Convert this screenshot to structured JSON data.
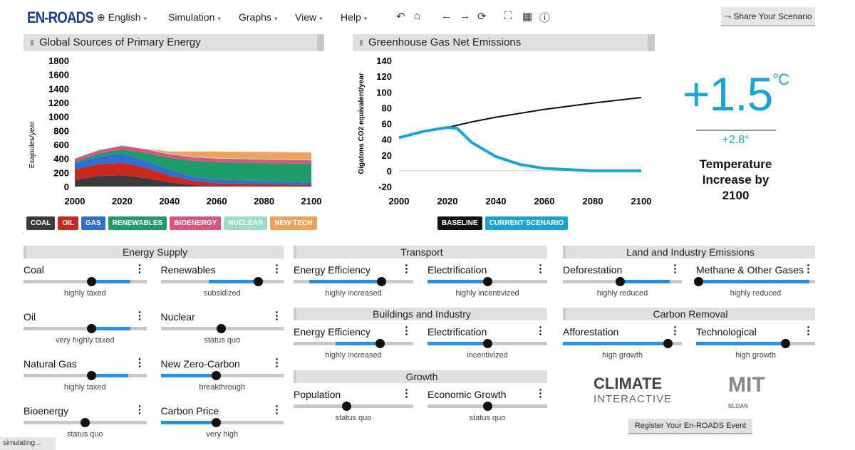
{
  "app": {
    "logo": "EN-ROADS",
    "status": "simulating..."
  },
  "menu": [
    {
      "label": "English",
      "icon": "globe-icon"
    },
    {
      "label": "Simulation"
    },
    {
      "label": "Graphs"
    },
    {
      "label": "View"
    },
    {
      "label": "Help"
    }
  ],
  "toolbar": {
    "undo": "↶",
    "home": "⌂",
    "back": "←",
    "forward": "→",
    "reset": "⟳",
    "fullscreen": "⛶",
    "table": "▦",
    "info": "ⓘ",
    "share_label": "Share Your Scenario",
    "share_icon": "⤳"
  },
  "graphs": {
    "left_title": "Global Sources of Primary Energy",
    "right_title": "Greenhouse Gas Net Emissions"
  },
  "chart_data": [
    {
      "type": "area",
      "title": "Global Sources of Primary Energy",
      "ylabel": "Exajoules/year",
      "xlabel": "",
      "xlim": [
        2000,
        2100
      ],
      "ylim": [
        0,
        1800
      ],
      "xticks": [
        2000,
        2020,
        2040,
        2060,
        2080,
        2100
      ],
      "yticks": [
        0,
        200,
        400,
        600,
        800,
        1000,
        1200,
        1400,
        1600,
        1800
      ],
      "x": [
        2000,
        2010,
        2020,
        2030,
        2040,
        2050,
        2060,
        2080,
        2100
      ],
      "stacked": true,
      "series": [
        {
          "name": "COAL",
          "color": "#3b3b3b",
          "values": [
            95,
            150,
            160,
            120,
            60,
            20,
            10,
            5,
            5
          ]
        },
        {
          "name": "OIL",
          "color": "#c8281e",
          "values": [
            150,
            170,
            180,
            150,
            100,
            60,
            40,
            30,
            20
          ]
        },
        {
          "name": "GAS",
          "color": "#2e6fd0",
          "values": [
            90,
            110,
            130,
            100,
            80,
            60,
            50,
            40,
            30
          ]
        },
        {
          "name": "RENEWABLES",
          "color": "#1f9c6a",
          "values": [
            20,
            40,
            60,
            110,
            170,
            230,
            250,
            260,
            270
          ]
        },
        {
          "name": "BIOENERGY",
          "color": "#d9567a",
          "values": [
            40,
            45,
            50,
            50,
            50,
            50,
            50,
            50,
            50
          ]
        },
        {
          "name": "NUCLEAR",
          "color": "#9fdcc8",
          "values": [
            10,
            10,
            10,
            10,
            10,
            10,
            10,
            10,
            10
          ]
        },
        {
          "name": "NEW TECH",
          "color": "#f2a15c",
          "values": [
            0,
            0,
            0,
            0,
            30,
            70,
            90,
            100,
            100
          ]
        }
      ]
    },
    {
      "type": "line",
      "title": "Greenhouse Gas Net Emissions",
      "ylabel": "Gigatons CO2 equivalent/year",
      "xlim": [
        2000,
        2100
      ],
      "ylim": [
        -20,
        140
      ],
      "xticks": [
        2000,
        2020,
        2040,
        2060,
        2080,
        2100
      ],
      "yticks": [
        -20,
        0,
        20,
        40,
        60,
        80,
        100,
        120,
        140
      ],
      "series": [
        {
          "name": "BASELINE",
          "color": "#111111",
          "x": [
            2000,
            2010,
            2020,
            2030,
            2040,
            2060,
            2080,
            2100
          ],
          "values": [
            42,
            50,
            55,
            62,
            68,
            78,
            86,
            93
          ]
        },
        {
          "name": "CURRENT SCENARIO",
          "color": "#1aa4d6",
          "x": [
            2000,
            2010,
            2020,
            2024,
            2030,
            2040,
            2050,
            2060,
            2080,
            2100
          ],
          "values": [
            42,
            50,
            55,
            54,
            36,
            18,
            8,
            3,
            0,
            0
          ]
        }
      ]
    }
  ],
  "temperature": {
    "value": "+1.5",
    "unit": "°C",
    "baseline": "+2.8°",
    "label_lines": [
      "Temperature",
      "Increase by",
      "2100"
    ]
  },
  "sections": [
    {
      "title": "Energy Supply",
      "sliders": [
        {
          "name": "Coal",
          "status": "highly taxed",
          "thumb": 0.55,
          "fill": [
            0.55,
            0.87
          ]
        },
        {
          "name": "Renewables",
          "status": "subsidized",
          "thumb": 0.79,
          "fill": [
            0.39,
            0.79
          ]
        },
        {
          "name": "Oil",
          "status": "very highly taxed",
          "thumb": 0.55,
          "fill": [
            0.55,
            0.87
          ]
        },
        {
          "name": "Nuclear",
          "status": "status quo",
          "thumb": 0.49,
          "fill": null
        },
        {
          "name": "Natural Gas",
          "status": "highly taxed",
          "thumb": 0.55,
          "fill": [
            0.55,
            0.85
          ]
        },
        {
          "name": "New Zero-Carbon",
          "status": "breakthrough",
          "thumb": 0.45,
          "fill": [
            0,
            0.45
          ]
        },
        {
          "name": "Bioenergy",
          "status": "status quo",
          "thumb": 0.5,
          "fill": null
        },
        {
          "name": "Carbon Price",
          "status": "very high",
          "thumb": 0.45,
          "fill": [
            0,
            0.45
          ]
        }
      ]
    },
    {
      "title": "Transport",
      "sliders": [
        {
          "name": "Energy Efficiency",
          "status": "highly increased",
          "thumb": 0.73,
          "fill": [
            0.13,
            0.73
          ]
        },
        {
          "name": "Electrification",
          "status": "highly incentivized",
          "thumb": 0.5,
          "fill": [
            0,
            0.5
          ]
        }
      ]
    },
    {
      "title": "Buildings and Industry",
      "sliders": [
        {
          "name": "Energy Efficiency",
          "status": "highly increased",
          "thumb": 0.72,
          "fill": [
            0.35,
            0.72
          ]
        },
        {
          "name": "Electrification",
          "status": "incentivized",
          "thumb": 0.5,
          "fill": [
            0,
            0.5
          ]
        }
      ]
    },
    {
      "title": "Growth",
      "sliders": [
        {
          "name": "Population",
          "status": "status quo",
          "thumb": 0.44,
          "fill": null
        },
        {
          "name": "Economic Growth",
          "status": "status quo",
          "thumb": 0.5,
          "fill": null
        }
      ]
    },
    {
      "title": "Land and Industry Emissions",
      "sliders": [
        {
          "name": "Deforestation",
          "status": "highly reduced",
          "thumb": 0.48,
          "fill": [
            0.48,
            0.9
          ]
        },
        {
          "name": "Methane & Other Gases",
          "status": "highly reduced",
          "thumb": 0.02,
          "fill": [
            0.02,
            0.95
          ]
        }
      ]
    },
    {
      "title": "Carbon Removal",
      "sliders": [
        {
          "name": "Afforestation",
          "status": "high growth",
          "thumb": 0.88,
          "fill": [
            0,
            0.88
          ]
        },
        {
          "name": "Technological",
          "status": "high growth",
          "thumb": 0.75,
          "fill": [
            0,
            0.75
          ]
        }
      ]
    }
  ],
  "logos": {
    "climate_interactive": "CLIMATE INTERACTIVE",
    "mit": "MIT SLOAN"
  },
  "register_label": "Register Your En-ROADS Event"
}
